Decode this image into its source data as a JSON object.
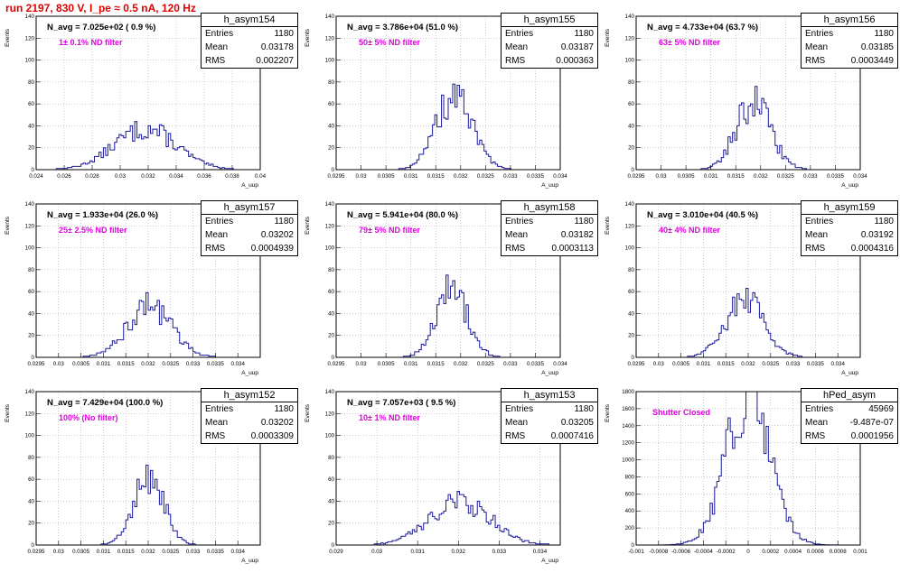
{
  "header": {
    "title": "run 2197,   830 V, I_pe ≈ 0.5 nA, 120 Hz"
  },
  "stat_labels": {
    "entries": "Entries",
    "mean": "Mean",
    "rms": "RMS"
  },
  "colors": {
    "title": "#e00000",
    "histogram": "#1a1a9c",
    "annotation": "#e000e0",
    "frame": "#000000"
  },
  "chart_data": [
    {
      "type": "bar",
      "name": "h_asym154",
      "n_avg": "N_avg = 7.025e+02 ( 0.9 %)",
      "annotation": "1± 0.1% ND filter",
      "stats": {
        "entries": "1180",
        "mean": "0.03178",
        "rms": "0.002207"
      },
      "ylabel": "Events",
      "xlabel": "A_uup",
      "xlim": [
        0.024,
        0.04
      ],
      "ylim": [
        0,
        140
      ],
      "xticks": [
        "0.024",
        "0.026",
        "0.028",
        "0.03",
        "0.032",
        "0.034",
        "0.036",
        "0.038",
        "0.04"
      ],
      "yticks": [
        "0",
        "20",
        "40",
        "60",
        "80",
        "100",
        "120",
        "140"
      ],
      "mean": 0.03178,
      "sigma": 0.00221,
      "peak": 37
    },
    {
      "type": "bar",
      "name": "h_asym155",
      "n_avg": "N_avg = 3.786e+04 (51.0 %)",
      "annotation": "50± 5% ND filter",
      "stats": {
        "entries": "1180",
        "mean": "0.03187",
        "rms": "0.000363"
      },
      "ylabel": "Events",
      "xlabel": "A_uup",
      "xlim": [
        0.0295,
        0.034
      ],
      "ylim": [
        0,
        140
      ],
      "xticks": [
        "0.0295",
        "0.03",
        "0.0305",
        "0.031",
        "0.0315",
        "0.032",
        "0.0325",
        "0.033",
        "0.0335",
        "0.034"
      ],
      "yticks": [
        "0",
        "20",
        "40",
        "60",
        "80",
        "100",
        "120",
        "140"
      ],
      "mean": 0.03187,
      "sigma": 0.000363,
      "peak": 66
    },
    {
      "type": "bar",
      "name": "h_asym156",
      "n_avg": "N_avg = 4.733e+04 (63.7 %)",
      "annotation": "63± 5% ND filter",
      "stats": {
        "entries": "1180",
        "mean": "0.03185",
        "rms": "0.0003449"
      },
      "ylabel": "Events",
      "xlabel": "A_uup",
      "xlim": [
        0.0295,
        0.034
      ],
      "ylim": [
        0,
        140
      ],
      "xticks": [
        "0.0295",
        "0.03",
        "0.0305",
        "0.031",
        "0.0315",
        "0.032",
        "0.0325",
        "0.033",
        "0.0335",
        "0.034"
      ],
      "yticks": [
        "0",
        "20",
        "40",
        "60",
        "80",
        "100",
        "120",
        "140"
      ],
      "mean": 0.03185,
      "sigma": 0.000345,
      "peak": 62
    },
    {
      "type": "bar",
      "name": "h_asym157",
      "n_avg": "N_avg = 1.933e+04 (26.0 %)",
      "annotation": "25± 2.5% ND filter",
      "stats": {
        "entries": "1180",
        "mean": "0.03202",
        "rms": "0.0004939"
      },
      "ylabel": "Events",
      "xlabel": "A_uup",
      "xlim": [
        0.0295,
        0.0345
      ],
      "ylim": [
        0,
        140
      ],
      "xticks": [
        "0.0295",
        "0.03",
        "0.0305",
        "0.031",
        "0.0315",
        "0.032",
        "0.0325",
        "0.033",
        "0.0335",
        "0.034"
      ],
      "yticks": [
        "0",
        "20",
        "40",
        "60",
        "80",
        "100",
        "120",
        "140"
      ],
      "mean": 0.03202,
      "sigma": 0.000494,
      "peak": 47
    },
    {
      "type": "bar",
      "name": "h_asym158",
      "n_avg": "N_avg = 5.941e+04 (80.0 %)",
      "annotation": "79± 5% ND filter",
      "stats": {
        "entries": "1180",
        "mean": "0.03182",
        "rms": "0.0003113"
      },
      "ylabel": "Events",
      "xlabel": "A_uup",
      "xlim": [
        0.0295,
        0.034
      ],
      "ylim": [
        0,
        140
      ],
      "xticks": [
        "0.0295",
        "0.03",
        "0.0305",
        "0.031",
        "0.0315",
        "0.032",
        "0.0325",
        "0.033",
        "0.0335",
        "0.034"
      ],
      "yticks": [
        "0",
        "20",
        "40",
        "60",
        "80",
        "100",
        "120",
        "140"
      ],
      "mean": 0.03182,
      "sigma": 0.000311,
      "peak": 64
    },
    {
      "type": "bar",
      "name": "h_asym159",
      "n_avg": "N_avg = 3.010e+04 (40.5 %)",
      "annotation": "40± 4% ND filter",
      "stats": {
        "entries": "1180",
        "mean": "0.03192",
        "rms": "0.0004316"
      },
      "ylabel": "Events",
      "xlabel": "A_uup",
      "xlim": [
        0.0295,
        0.0345
      ],
      "ylim": [
        0,
        140
      ],
      "xticks": [
        "0.0295",
        "0.03",
        "0.0305",
        "0.031",
        "0.0315",
        "0.032",
        "0.0325",
        "0.033",
        "0.0335",
        "0.034"
      ],
      "yticks": [
        "0",
        "20",
        "40",
        "60",
        "80",
        "100",
        "120",
        "140"
      ],
      "mean": 0.03192,
      "sigma": 0.000432,
      "peak": 53
    },
    {
      "type": "bar",
      "name": "h_asym152",
      "n_avg": "N_avg = 7.429e+04 (100.0 %)",
      "annotation": "100% (No filter)",
      "stats": {
        "entries": "1180",
        "mean": "0.03202",
        "rms": "0.0003309"
      },
      "ylabel": "Events",
      "xlabel": "A_uup",
      "xlim": [
        0.0295,
        0.0345
      ],
      "ylim": [
        0,
        140
      ],
      "xticks": [
        "0.0295",
        "0.03",
        "0.0305",
        "0.031",
        "0.0315",
        "0.032",
        "0.0325",
        "0.033",
        "0.0335",
        "0.034"
      ],
      "yticks": [
        "0",
        "20",
        "40",
        "60",
        "80",
        "100",
        "120",
        "140"
      ],
      "mean": 0.03202,
      "sigma": 0.000331,
      "peak": 64
    },
    {
      "type": "bar",
      "name": "h_asym153",
      "n_avg": "N_avg = 7.057e+03 ( 9.5 %)",
      "annotation": "10± 1% ND filter",
      "stats": {
        "entries": "1180",
        "mean": "0.03205",
        "rms": "0.0007416"
      },
      "ylabel": "Events",
      "xlabel": "A_uup",
      "xlim": [
        0.029,
        0.0345
      ],
      "ylim": [
        0,
        140
      ],
      "xticks": [
        "0.029",
        "0.03",
        "0.031",
        "0.032",
        "0.033",
        "0.034"
      ],
      "yticks": [
        "0",
        "20",
        "40",
        "60",
        "80",
        "100",
        "120",
        "140"
      ],
      "mean": 0.03205,
      "sigma": 0.000742,
      "peak": 40
    },
    {
      "type": "bar",
      "name": "hPed_asym",
      "n_avg": "",
      "annotation": "Shutter Closed",
      "stats": {
        "entries": "45969",
        "mean": "-9.487e-07",
        "rms": "0.0001956"
      },
      "ylabel": "Events",
      "xlabel": "",
      "xlim": [
        -0.001,
        0.001
      ],
      "ylim": [
        0,
        1800
      ],
      "xticks": [
        "-0.001",
        "-0.0008",
        "-0.0006",
        "-0.0004",
        "-0.0002",
        "0",
        "0.0002",
        "0.0004",
        "0.0006",
        "0.0008",
        "0.001"
      ],
      "yticks": [
        "0",
        "200",
        "400",
        "600",
        "800",
        "1000",
        "1200",
        "1400",
        "1600",
        "1800"
      ],
      "mean": -9.5e-07,
      "sigma": 0.000196,
      "peak": 1700
    }
  ]
}
